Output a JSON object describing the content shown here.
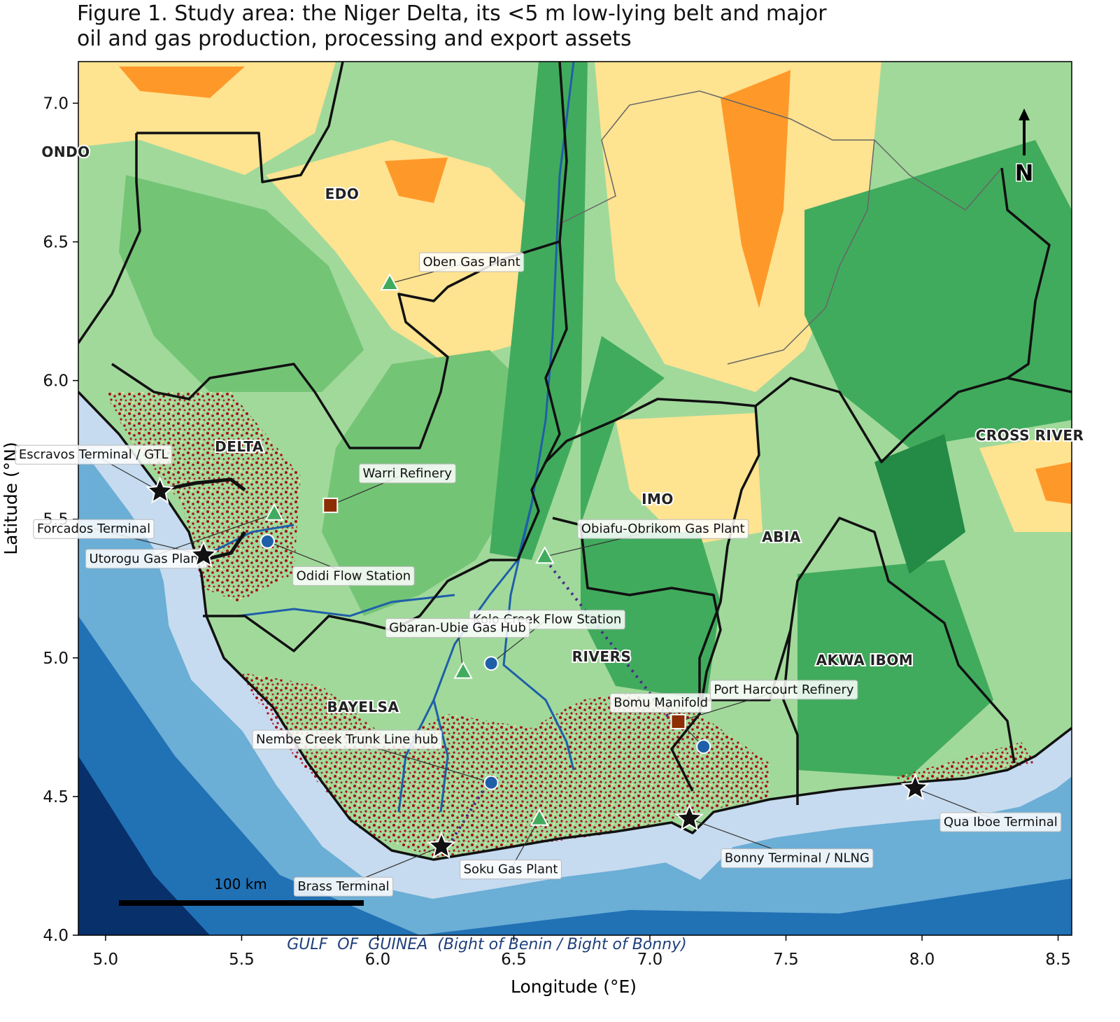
{
  "map": {
    "title": "Figure 1. Study area: the Niger Delta, its <5 m low-lying belt and major\noil and gas production, processing and export assets",
    "x_label": "Longitude (°E)",
    "y_label": "Latitude (°N)",
    "xlim": [
      4.9,
      8.55
    ],
    "ylim": [
      4.0,
      7.15
    ],
    "xticks": [
      {
        "value": 5.0,
        "label": "5.0"
      },
      5.5,
      {
        "value": 6.0,
        "label": "6.0"
      },
      6.5,
      {
        "value": 7.0,
        "label": "7.0"
      },
      7.5,
      {
        "value": 8.0,
        "label": "8.0"
      },
      8.5
    ],
    "yticks": [
      {
        "value": 4.0,
        "label": "4.0"
      },
      4.5,
      {
        "value": 5.0,
        "label": "5.0"
      },
      5.5,
      {
        "value": 6.0,
        "label": "6.0"
      },
      6.5,
      {
        "value": 7.0,
        "label": "7.0"
      }
    ],
    "states": [
      "ONDO",
      "EDO",
      "DELTA",
      "IMO",
      "ABIA",
      "RIVERS",
      "BAYELSA",
      "AKWA IBOM",
      "CROSS RIVER"
    ],
    "marker_styles": {
      "terminal": {
        "shape": "star",
        "color": "#111111"
      },
      "gas_plant": {
        "shape": "triangle",
        "color": "#41ab5d"
      },
      "flow_station": {
        "shape": "circle",
        "color": "#1f5fa8"
      },
      "refinery": {
        "shape": "square",
        "color": "#8c2d04"
      }
    },
    "assets": [
      {
        "name": "Escravos Terminal / GTL",
        "type": "terminal",
        "lon": 5.2,
        "lat": 5.6
      },
      {
        "name": "Forcados Terminal",
        "type": "terminal",
        "lon": 5.36,
        "lat": 5.37
      },
      {
        "name": "Utorogu Gas Plant",
        "type": "gas_plant",
        "lon": 5.62,
        "lat": 5.52
      },
      {
        "name": "Odidi Flow Station",
        "type": "flow_station",
        "lon": 5.595,
        "lat": 5.42
      },
      {
        "name": "Warri Refinery",
        "type": "refinery",
        "lon": 5.826,
        "lat": 5.55
      },
      {
        "name": "Oben Gas Plant",
        "type": "gas_plant",
        "lon": 6.044,
        "lat": 6.35
      },
      {
        "name": "Obiafu-Obrikom Gas Plant",
        "type": "gas_plant",
        "lon": 6.614,
        "lat": 5.365
      },
      {
        "name": "Kolo Creek Flow Station",
        "type": "flow_station",
        "lon": 6.417,
        "lat": 4.98
      },
      {
        "name": "Gbaran-Ubie Gas Hub",
        "type": "gas_plant",
        "lon": 6.314,
        "lat": 4.95
      },
      {
        "name": "Nembe Creek Trunk Line hub",
        "type": "flow_station",
        "lon": 6.417,
        "lat": 4.55
      },
      {
        "name": "Brass Terminal",
        "type": "terminal",
        "lon": 6.234,
        "lat": 4.32
      },
      {
        "name": "Soku Gas Plant",
        "type": "gas_plant",
        "lon": 6.594,
        "lat": 4.42
      },
      {
        "name": "Bomu Manifold",
        "type": "flow_station",
        "lon": 7.197,
        "lat": 4.68
      },
      {
        "name": "Port Harcourt Refinery",
        "type": "refinery",
        "lon": 7.104,
        "lat": 4.77
      },
      {
        "name": "Bonny Terminal / NLNG",
        "type": "terminal",
        "lon": 7.145,
        "lat": 4.42
      },
      {
        "name": "Qua Iboe Terminal",
        "type": "terminal",
        "lon": 7.975,
        "lat": 4.53
      }
    ],
    "scale_bar_label": "100 km",
    "north_label": "N",
    "sea_label": "GULF  OF  GUINEA  (Bight of Benin / Bight of Bonny)"
  }
}
